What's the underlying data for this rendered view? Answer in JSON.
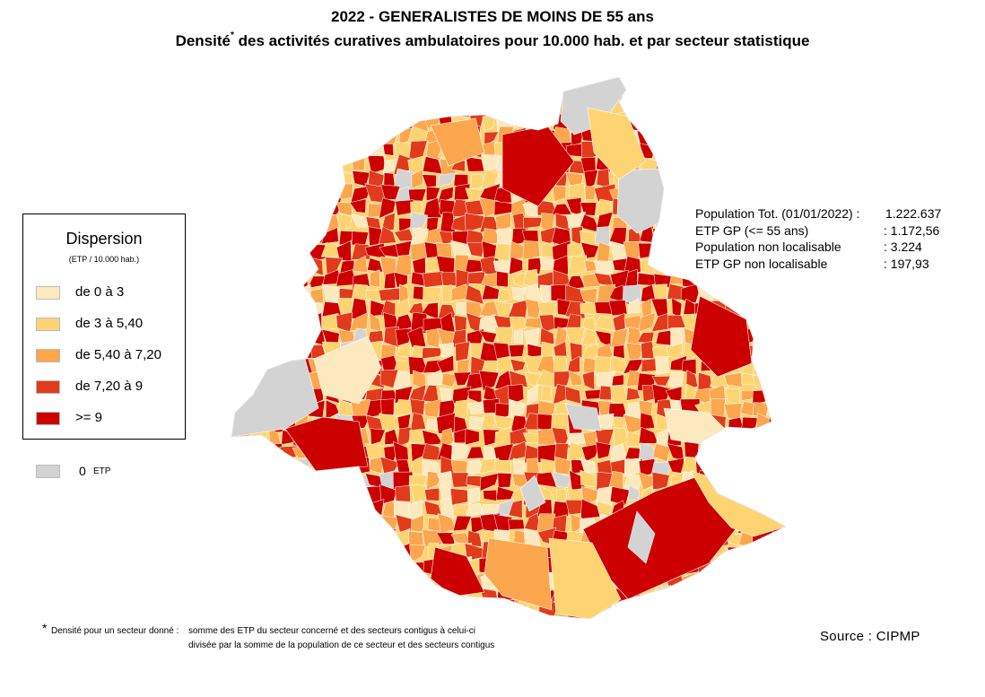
{
  "title": {
    "line1": "2022 - GENERALISTES DE MOINS DE 55 ans",
    "line2_start": "Densité",
    "line2_star": "*",
    "line2_rest": " des activités curatives ambulatoires pour 10.000 hab. et par secteur statistique"
  },
  "legend": {
    "title": "Dispersion",
    "subtitle": "(ETP / 10.000 hab.)",
    "classes": [
      {
        "label": "de 0 à 3",
        "color": "#fde9bf"
      },
      {
        "label": "de 3 à 5,40",
        "color": "#fed472"
      },
      {
        "label": "de 5,40 à 7,20",
        "color": "#fca64e"
      },
      {
        "label": "de 7,20 à 9",
        "color": "#e13b1b"
      },
      {
        "label": ">= 9",
        "color": "#cc0000"
      }
    ],
    "zero_value": "0",
    "zero_unit": "ETP",
    "zero_color": "#d3d3d3"
  },
  "stats": [
    {
      "key": "Population Tot. (01/01/2022) :",
      "value": "1.222.637"
    },
    {
      "key": "ETP GP (<= 55 ans)",
      "value": ": 1.172,56"
    },
    {
      "key": "Population non localisable",
      "value": ": 3.224"
    },
    {
      "key": "ETP GP non localisable",
      "value": ": 197,93"
    }
  ],
  "source": "Source : CIPMP",
  "footnote": {
    "star": "*",
    "line1_label": "Densité pour un secteur donné :",
    "line1_text": "somme des ETP du secteur concerné et des secteurs contigus à celui-ci",
    "line2_text": "divisée  par la somme de la population de ce secteur et des secteurs contigus"
  }
}
